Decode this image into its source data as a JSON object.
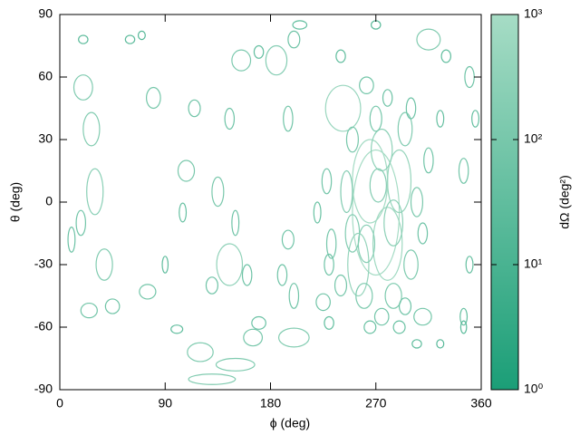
{
  "chart_data": {
    "type": "ellipses",
    "xlabel": "ϕ (deg)",
    "ylabel": "θ (deg)",
    "colorbar_label": "dΩ (deg²)",
    "xlim": [
      0,
      360
    ],
    "ylim": [
      -90,
      90
    ],
    "xticks": [
      0,
      90,
      180,
      270,
      360
    ],
    "yticks": [
      -90,
      -60,
      -30,
      0,
      30,
      60,
      90
    ],
    "clim": [
      1,
      1000
    ],
    "log_colorbar": true,
    "cticks": [
      {
        "value": 1,
        "label": "10⁰"
      },
      {
        "value": 10,
        "label": "10¹"
      },
      {
        "value": 100,
        "label": "10²"
      },
      {
        "value": 1000,
        "label": "10³"
      }
    ],
    "color_low": "#1b9e77",
    "color_high": "#a6dcc5",
    "x": [
      130,
      150,
      120,
      165,
      100,
      25,
      45,
      75,
      38,
      18,
      10,
      30,
      20,
      27,
      80,
      90,
      130,
      145,
      160,
      135,
      145,
      150,
      108,
      105,
      115,
      155,
      170,
      195,
      200,
      170,
      230,
      225,
      200,
      190,
      230,
      195,
      185,
      200,
      205,
      240,
      270,
      262,
      242,
      315,
      330,
      350,
      355,
      345,
      350,
      345,
      345,
      310,
      290,
      305,
      325,
      20,
      60,
      70,
      270,
      265,
      280,
      255,
      290,
      275,
      260,
      285,
      300,
      250,
      245,
      295,
      270,
      305,
      275,
      240,
      250,
      300,
      285,
      262,
      272,
      232,
      228,
      315,
      310,
      295,
      265,
      280,
      220,
      325
    ],
    "y": [
      -85,
      -78,
      -72,
      -65,
      -61,
      -52,
      -50,
      -43,
      -30,
      -10,
      -18,
      5,
      55,
      35,
      50,
      -30,
      -40,
      -30,
      -35,
      5,
      40,
      -10,
      15,
      -5,
      45,
      68,
      72,
      -18,
      -65,
      -58,
      -58,
      -48,
      -45,
      -35,
      -30,
      40,
      68,
      78,
      85,
      70,
      85,
      56,
      45,
      78,
      70,
      60,
      40,
      15,
      -30,
      -55,
      -60,
      -55,
      -60,
      -68,
      -68,
      78,
      78,
      80,
      -5,
      10,
      -20,
      -30,
      10,
      25,
      -45,
      -45,
      -30,
      -15,
      5,
      35,
      40,
      0,
      -55,
      -40,
      30,
      45,
      -10,
      -20,
      8,
      -20,
      10,
      20,
      -15,
      -50,
      -60,
      50,
      -5,
      40
    ],
    "width": [
      40,
      33,
      22,
      16,
      10,
      14,
      12,
      14,
      14,
      8,
      6,
      14,
      16,
      14,
      12,
      5,
      10,
      22,
      8,
      10,
      8,
      6,
      14,
      6,
      10,
      16,
      8,
      10,
      26,
      12,
      8,
      12,
      8,
      8,
      8,
      8,
      18,
      10,
      12,
      8,
      8,
      12,
      30,
      20,
      8,
      8,
      6,
      8,
      6,
      6,
      5,
      15,
      10,
      8,
      6,
      8,
      8,
      6,
      40,
      30,
      25,
      18,
      20,
      18,
      14,
      14,
      12,
      12,
      10,
      12,
      10,
      10,
      12,
      10,
      10,
      8,
      16,
      14,
      14,
      8,
      8,
      8,
      8,
      10,
      10,
      8,
      6,
      6
    ],
    "height": [
      5,
      6,
      9,
      8,
      4,
      7,
      7,
      7,
      15,
      12,
      12,
      22,
      12,
      16,
      10,
      8,
      8,
      20,
      10,
      14,
      10,
      12,
      10,
      9,
      8,
      10,
      6,
      9,
      9,
      6,
      6,
      8,
      12,
      10,
      10,
      12,
      14,
      8,
      4,
      6,
      4,
      8,
      22,
      10,
      6,
      10,
      8,
      12,
      8,
      8,
      6,
      8,
      6,
      4,
      4,
      4,
      4,
      4,
      60,
      40,
      35,
      30,
      30,
      20,
      12,
      12,
      14,
      18,
      20,
      16,
      12,
      14,
      8,
      10,
      12,
      10,
      22,
      18,
      16,
      14,
      12,
      12,
      10,
      8,
      6,
      8,
      10,
      8
    ],
    "solid_angle": [
      157,
      155,
      155,
      100,
      31,
      77,
      66,
      77,
      165,
      75,
      57,
      242,
      150,
      175,
      94,
      31,
      63,
      345,
      63,
      110,
      63,
      57,
      110,
      42,
      63,
      125,
      38,
      70,
      184,
      57,
      38,
      75,
      75,
      63,
      63,
      75,
      198,
      63,
      38,
      38,
      25,
      75,
      518,
      157,
      38,
      63,
      38,
      75,
      38,
      38,
      24,
      94,
      47,
      25,
      19,
      25,
      25,
      19,
      1000,
      900,
      690,
      424,
      471,
      283,
      132,
      132,
      132,
      170,
      157,
      151,
      94,
      110,
      75,
      79,
      94,
      63,
      276,
      198,
      176,
      88,
      75,
      75,
      63,
      63,
      47,
      50,
      47,
      38
    ]
  }
}
